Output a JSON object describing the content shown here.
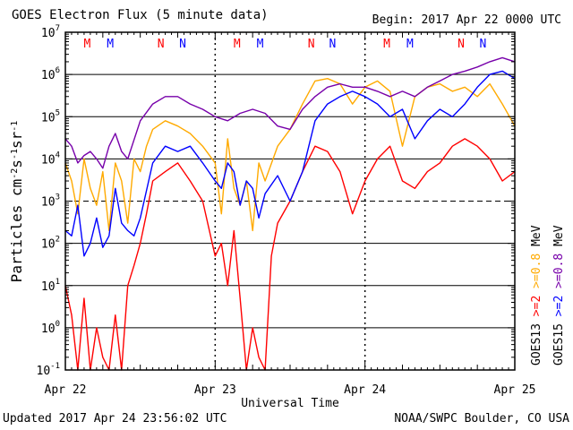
{
  "header": {
    "title": "GOES Electron Flux (5 minute data)",
    "begin": "Begin: 2017 Apr 22 0000 UTC"
  },
  "footer": {
    "updated": "Updated 2017 Apr 24 23:56:02 UTC",
    "credit": "NOAA/SWPC Boulder, CO USA"
  },
  "colors": {
    "goes15_2mev": "#0000ff",
    "goes15_08mev": "#7700aa",
    "goes13_2mev": "#ff0000",
    "goes13_08mev": "#ffaa00",
    "grid": "#000000"
  },
  "chart_data": {
    "type": "line",
    "title": "GOES Electron Flux (5 minute data)",
    "xlabel": "Universal Time",
    "ylabel": "Particles cm-2s-1sr-1",
    "yscale": "log",
    "ylim_exp": [
      -1,
      7
    ],
    "y_tick_labels": [
      {
        "base": "10",
        "exp": "7"
      },
      {
        "base": "10",
        "exp": "6"
      },
      {
        "base": "10",
        "exp": "5"
      },
      {
        "base": "10",
        "exp": "4"
      },
      {
        "base": "10",
        "exp": "3"
      },
      {
        "base": "10",
        "exp": "2"
      },
      {
        "base": "10",
        "exp": "1"
      },
      {
        "base": "10",
        "exp": "0"
      },
      {
        "base": "10",
        "exp": "-1"
      }
    ],
    "x_range_hours": [
      0,
      72
    ],
    "x_tick_labels": [
      "Apr 22",
      "Apr 23",
      "Apr 24",
      "Apr 25"
    ],
    "grid": true,
    "markers": [
      {
        "label": "M",
        "hour": 3.5,
        "color": "#ff0000"
      },
      {
        "label": "M",
        "hour": 7.2,
        "color": "#0000ff"
      },
      {
        "label": "N",
        "hour": 15.3,
        "color": "#ff0000"
      },
      {
        "label": "N",
        "hour": 18.8,
        "color": "#0000ff"
      },
      {
        "label": "M",
        "hour": 27.5,
        "color": "#ff0000"
      },
      {
        "label": "M",
        "hour": 31.2,
        "color": "#0000ff"
      },
      {
        "label": "N",
        "hour": 39.4,
        "color": "#ff0000"
      },
      {
        "label": "N",
        "hour": 42.8,
        "color": "#0000ff"
      },
      {
        "label": "M",
        "hour": 51.5,
        "color": "#ff0000"
      },
      {
        "label": "M",
        "hour": 55.2,
        "color": "#0000ff"
      },
      {
        "label": "N",
        "hour": 63.4,
        "color": "#ff0000"
      },
      {
        "label": "N",
        "hour": 66.9,
        "color": "#0000ff"
      }
    ],
    "legend": {
      "groups": [
        {
          "satellite": "GOES13",
          "entries": [
            {
              "label": ">=2",
              "color": "#ff0000"
            },
            {
              "label": ">=0.8",
              "color": "#ffaa00"
            },
            {
              "label": "MeV",
              "color": "#000000"
            }
          ]
        },
        {
          "satellite": "GOES15",
          "entries": [
            {
              "label": ">=2",
              "color": "#0000ff"
            },
            {
              "label": ">=0.8",
              "color": "#7700aa"
            },
            {
              "label": "MeV",
              "color": "#000000"
            }
          ]
        }
      ]
    },
    "series": [
      {
        "satellite": "GOES15",
        "energy": ">=0.8 MeV",
        "color": "#7700aa",
        "x": [
          0,
          1,
          2,
          3,
          4,
          5,
          6,
          7,
          8,
          9,
          10,
          12,
          14,
          16,
          18,
          20,
          22,
          24,
          26,
          28,
          30,
          32,
          34,
          36,
          38,
          40,
          42,
          44,
          46,
          48,
          50,
          52,
          54,
          56,
          58,
          60,
          62,
          64,
          66,
          68,
          70,
          72
        ],
        "y": [
          30000,
          20000,
          8000,
          12000,
          15000,
          10000,
          6000,
          20000,
          40000,
          15000,
          10000,
          80000,
          200000,
          300000,
          300000,
          200000,
          150000,
          100000,
          80000,
          120000,
          150000,
          120000,
          60000,
          50000,
          150000,
          300000,
          500000,
          600000,
          500000,
          500000,
          400000,
          300000,
          400000,
          300000,
          500000,
          700000,
          1000000,
          1200000,
          1500000,
          2000000,
          2500000,
          2000000
        ]
      },
      {
        "satellite": "GOES15",
        "energy": ">=2 MeV",
        "color": "#0000ff",
        "x": [
          0,
          1,
          2,
          3,
          4,
          5,
          6,
          7,
          8,
          9,
          10,
          11,
          12,
          14,
          16,
          18,
          20,
          22,
          24,
          25,
          26,
          27,
          28,
          29,
          30,
          31,
          32,
          34,
          36,
          38,
          40,
          42,
          44,
          46,
          48,
          50,
          52,
          54,
          56,
          58,
          60,
          62,
          64,
          66,
          68,
          70,
          72
        ],
        "y": [
          200,
          150,
          800,
          50,
          100,
          400,
          80,
          150,
          2000,
          300,
          200,
          150,
          400,
          8000,
          20000,
          15000,
          20000,
          8000,
          3000,
          2000,
          8000,
          5000,
          800,
          3000,
          2000,
          400,
          1500,
          4000,
          1000,
          5000,
          80000,
          200000,
          300000,
          400000,
          300000,
          200000,
          100000,
          150000,
          30000,
          80000,
          150000,
          100000,
          200000,
          500000,
          1000000,
          1200000,
          800000
        ]
      },
      {
        "satellite": "GOES13",
        "energy": ">=0.8 MeV",
        "color": "#ffaa00",
        "x": [
          0,
          1,
          2,
          3,
          4,
          5,
          6,
          7,
          8,
          9,
          10,
          11,
          12,
          13,
          14,
          16,
          18,
          20,
          22,
          24,
          25,
          26,
          27,
          28,
          29,
          30,
          31,
          32,
          34,
          36,
          38,
          40,
          42,
          44,
          46,
          48,
          50,
          52,
          54,
          56,
          58,
          60,
          62,
          64,
          66,
          68,
          70,
          72
        ],
        "y": [
          8000,
          3000,
          500,
          10000,
          2000,
          800,
          5000,
          200,
          8000,
          3000,
          300,
          10000,
          5000,
          20000,
          50000,
          80000,
          60000,
          40000,
          20000,
          8000,
          500,
          30000,
          2000,
          800,
          3000,
          200,
          8000,
          3000,
          20000,
          50000,
          200000,
          700000,
          800000,
          600000,
          200000,
          500000,
          700000,
          400000,
          20000,
          300000,
          500000,
          600000,
          400000,
          500000,
          300000,
          600000,
          200000,
          60000
        ]
      },
      {
        "satellite": "GOES13",
        "energy": ">=2 MeV",
        "color": "#ff0000",
        "x": [
          0,
          1,
          2,
          3,
          4,
          5,
          6,
          7,
          8,
          9,
          10,
          11,
          12,
          13,
          14,
          16,
          18,
          20,
          22,
          24,
          25,
          26,
          27,
          28,
          29,
          30,
          31,
          32,
          33,
          34,
          36,
          38,
          40,
          42,
          44,
          46,
          48,
          50,
          52,
          54,
          56,
          58,
          60,
          62,
          64,
          66,
          68,
          70,
          72
        ],
        "y": [
          10,
          2,
          0.1,
          5,
          0.1,
          1,
          0.2,
          0.1,
          2,
          0.1,
          10,
          30,
          100,
          500,
          3000,
          5000,
          8000,
          3000,
          1000,
          50,
          100,
          10,
          200,
          5,
          0.1,
          1,
          0.2,
          0.1,
          50,
          300,
          1000,
          5000,
          20000,
          15000,
          5000,
          500,
          3000,
          10000,
          20000,
          3000,
          2000,
          5000,
          8000,
          20000,
          30000,
          20000,
          10000,
          3000,
          5000
        ]
      }
    ]
  }
}
